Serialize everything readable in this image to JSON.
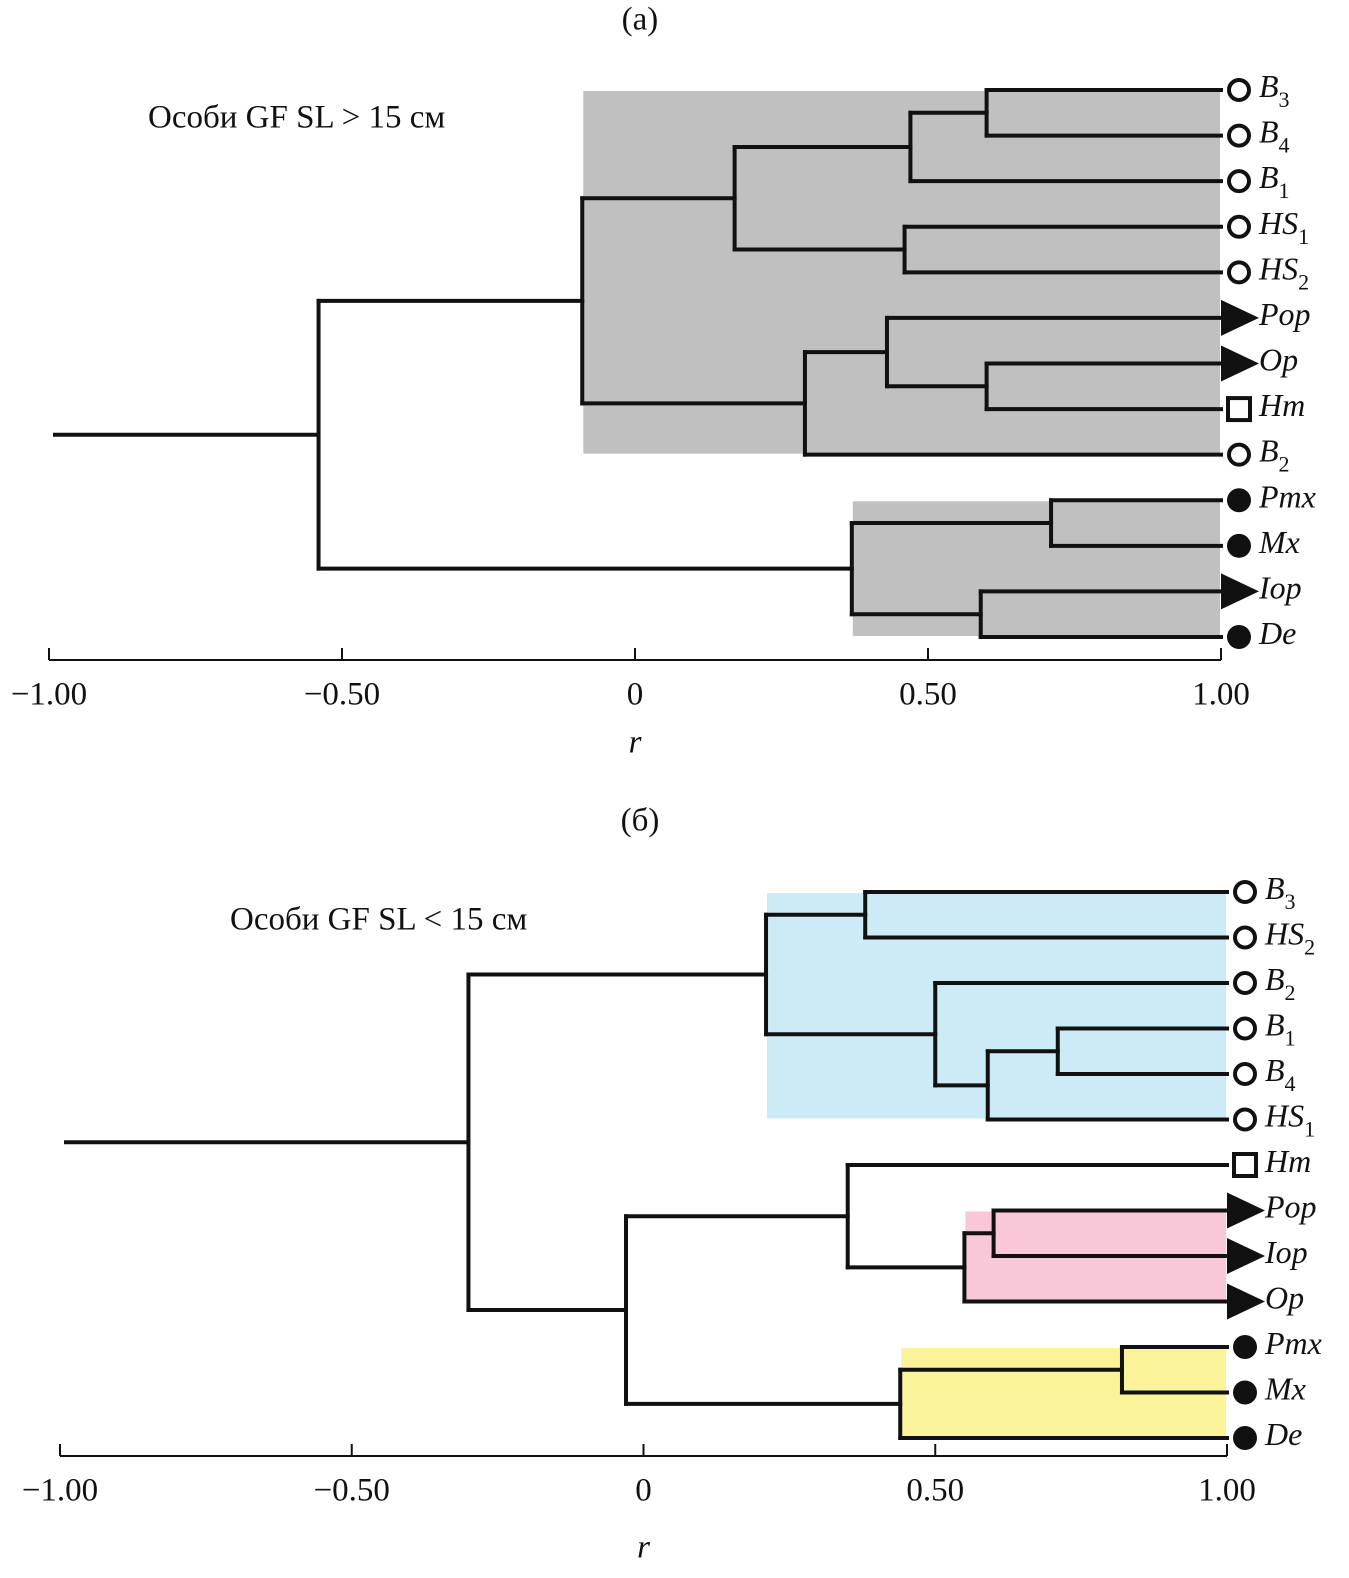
{
  "chart_data": [
    {
      "type": "dendrogram",
      "panel_label": "(а)",
      "title": "Особи GF SL > 15 см",
      "xlabel": "r",
      "xlim": [
        -1,
        1
      ],
      "xticks": [
        {
          "value": -1,
          "label": "−1.00"
        },
        {
          "value": -0.5,
          "label": "−0.50"
        },
        0,
        {
          "value": 0.5,
          "label": "0.50"
        },
        {
          "value": 1,
          "label": "1.00"
        }
      ],
      "tree": {
        "r": -0.54,
        "children": [
          {
            "r": -0.09,
            "fill": "#c0c0c0",
            "children": [
              {
                "r": 0.17,
                "children": [
                  {
                    "r": 0.47,
                    "children": [
                      {
                        "r": 0.6,
                        "children": [
                          {
                            "label": "B",
                            "sub": "3",
                            "marker": "open-circle"
                          },
                          {
                            "label": "B",
                            "sub": "4",
                            "marker": "open-circle"
                          }
                        ]
                      },
                      {
                        "label": "B",
                        "sub": "1",
                        "marker": "open-circle"
                      }
                    ]
                  },
                  {
                    "r": 0.46,
                    "children": [
                      {
                        "label": "HS",
                        "sub": "1",
                        "marker": "open-circle"
                      },
                      {
                        "label": "HS",
                        "sub": "2",
                        "marker": "open-circle"
                      }
                    ]
                  }
                ]
              },
              {
                "r": 0.29,
                "children": [
                  {
                    "r": 0.43,
                    "children": [
                      {
                        "label": "Pop",
                        "marker": "filled-triangle"
                      },
                      {
                        "r": 0.6,
                        "children": [
                          {
                            "label": "Op",
                            "marker": "filled-triangle"
                          },
                          {
                            "label": "Hm",
                            "marker": "open-square"
                          }
                        ]
                      }
                    ]
                  },
                  {
                    "label": "B",
                    "sub": "2",
                    "marker": "open-circle"
                  }
                ]
              }
            ]
          },
          {
            "r": 0.37,
            "fill": "#c0c0c0",
            "children": [
              {
                "r": 0.71,
                "children": [
                  {
                    "label": "Pmx",
                    "marker": "filled-circle"
                  },
                  {
                    "label": "Mx",
                    "marker": "filled-circle"
                  }
                ]
              },
              {
                "r": 0.59,
                "children": [
                  {
                    "label": "Iop",
                    "marker": "filled-triangle"
                  },
                  {
                    "label": "De",
                    "marker": "filled-circle"
                  }
                ]
              }
            ]
          }
        ]
      }
    },
    {
      "type": "dendrogram",
      "panel_label": "(б)",
      "title": "Особи GF SL < 15 см",
      "xlabel": "r",
      "xlim": [
        -1,
        1
      ],
      "xticks": [
        {
          "value": -1,
          "label": "−1.00"
        },
        {
          "value": -0.5,
          "label": "−0.50"
        },
        0,
        {
          "value": 0.5,
          "label": "0.50"
        },
        {
          "value": 1,
          "label": "1.00"
        }
      ],
      "tree": {
        "r": -0.3,
        "children": [
          {
            "r": 0.21,
            "fill": "#cdeaf7",
            "children": [
              {
                "r": 0.38,
                "children": [
                  {
                    "label": "B",
                    "sub": "3",
                    "marker": "open-circle"
                  },
                  {
                    "label": "HS",
                    "sub": "2",
                    "marker": "open-circle"
                  }
                ]
              },
              {
                "r": 0.5,
                "children": [
                  {
                    "label": "B",
                    "sub": "2",
                    "marker": "open-circle"
                  },
                  {
                    "r": 0.59,
                    "children": [
                      {
                        "r": 0.71,
                        "children": [
                          {
                            "label": "B",
                            "sub": "1",
                            "marker": "open-circle"
                          },
                          {
                            "label": "B",
                            "sub": "4",
                            "marker": "open-circle"
                          }
                        ]
                      },
                      {
                        "label": "HS",
                        "sub": "1",
                        "marker": "open-circle"
                      }
                    ]
                  }
                ]
              }
            ]
          },
          {
            "r": -0.03,
            "children": [
              {
                "r": 0.35,
                "children": [
                  {
                    "label": "Hm",
                    "marker": "open-square"
                  },
                  {
                    "r": 0.55,
                    "fill": "#f9c7d8",
                    "children": [
                      {
                        "r": 0.6,
                        "children": [
                          {
                            "label": "Pop",
                            "marker": "filled-triangle"
                          },
                          {
                            "label": "Iop",
                            "marker": "filled-triangle"
                          }
                        ]
                      },
                      {
                        "label": "Op",
                        "marker": "filled-triangle"
                      }
                    ]
                  }
                ]
              },
              {
                "r": 0.44,
                "fill": "#fbf39a",
                "children": [
                  {
                    "r": 0.82,
                    "children": [
                      {
                        "label": "Pmx",
                        "marker": "filled-circle"
                      },
                      {
                        "label": "Mx",
                        "marker": "filled-circle"
                      }
                    ]
                  },
                  {
                    "label": "De",
                    "marker": "filled-circle"
                  }
                ]
              }
            ]
          }
        ]
      }
    }
  ]
}
